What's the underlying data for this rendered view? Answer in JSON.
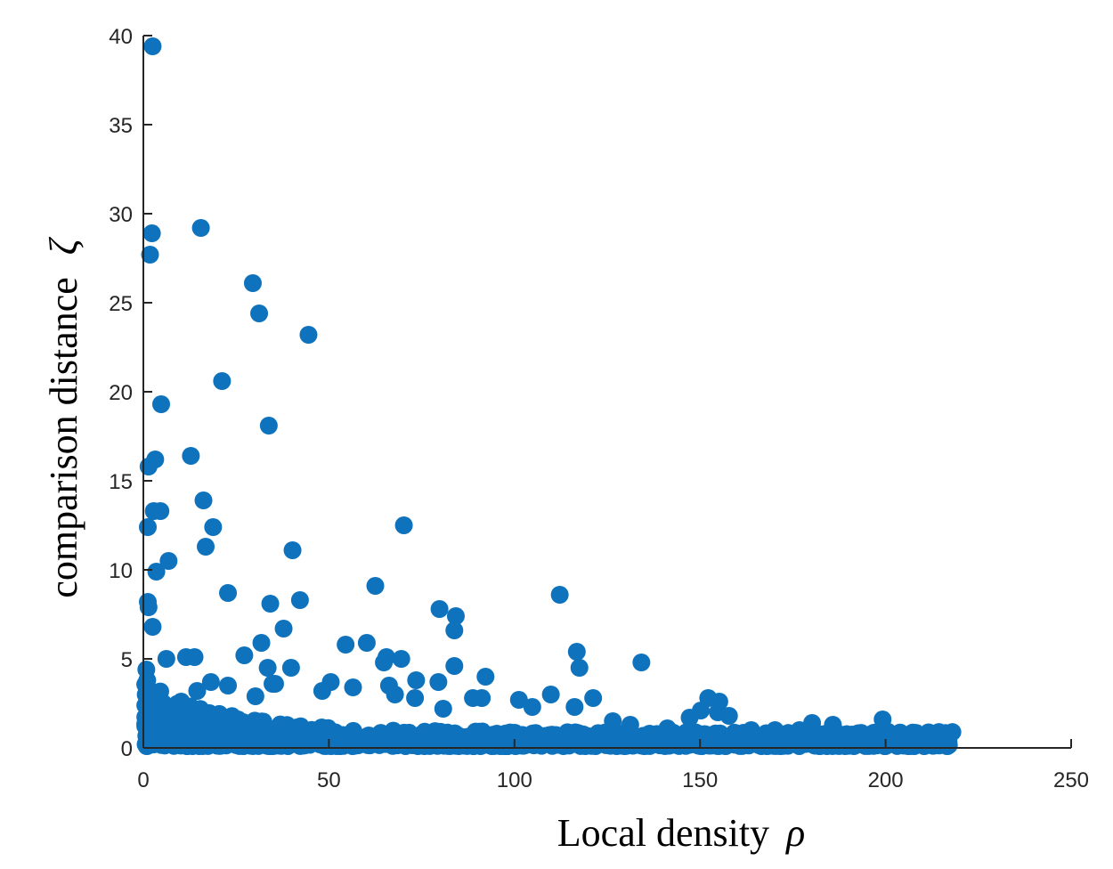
{
  "chart_data": {
    "type": "scatter",
    "title": "",
    "xlabel": "Local density",
    "xlabel_symbol": "ρ",
    "ylabel": "comparison distance",
    "ylabel_symbol": "ζ",
    "xlim": [
      0,
      250
    ],
    "ylim": [
      0,
      40
    ],
    "xticks": [
      0,
      50,
      100,
      150,
      200,
      250
    ],
    "yticks": [
      0,
      5,
      10,
      15,
      20,
      25,
      30,
      35,
      40
    ],
    "grid": false,
    "legend": "none",
    "marker_color": "#0e72bd",
    "highlighted_points": [
      {
        "x": 2.5,
        "y": 39.4
      },
      {
        "x": 2.3,
        "y": 28.9
      },
      {
        "x": 1.8,
        "y": 27.7
      },
      {
        "x": 15.5,
        "y": 29.2
      },
      {
        "x": 29.5,
        "y": 26.1
      },
      {
        "x": 31.2,
        "y": 24.4
      },
      {
        "x": 44.5,
        "y": 23.2
      },
      {
        "x": 21.2,
        "y": 20.6
      },
      {
        "x": 4.8,
        "y": 19.3
      },
      {
        "x": 33.8,
        "y": 18.1
      },
      {
        "x": 12.8,
        "y": 16.4
      },
      {
        "x": 3.2,
        "y": 16.2
      },
      {
        "x": 1.4,
        "y": 15.8
      },
      {
        "x": 16.2,
        "y": 13.9
      },
      {
        "x": 2.8,
        "y": 13.3
      },
      {
        "x": 4.6,
        "y": 13.3
      },
      {
        "x": 1.2,
        "y": 12.4
      },
      {
        "x": 18.8,
        "y": 12.4
      },
      {
        "x": 70.2,
        "y": 12.5
      },
      {
        "x": 16.8,
        "y": 11.3
      },
      {
        "x": 40.2,
        "y": 11.1
      },
      {
        "x": 6.8,
        "y": 10.5
      },
      {
        "x": 3.5,
        "y": 9.9
      },
      {
        "x": 62.5,
        "y": 9.1
      },
      {
        "x": 22.8,
        "y": 8.7
      },
      {
        "x": 112.2,
        "y": 8.6
      },
      {
        "x": 42.2,
        "y": 8.3
      },
      {
        "x": 1.2,
        "y": 8.2
      },
      {
        "x": 34.2,
        "y": 8.1
      },
      {
        "x": 1.4,
        "y": 7.9
      },
      {
        "x": 79.8,
        "y": 7.8
      },
      {
        "x": 84.2,
        "y": 7.4
      },
      {
        "x": 2.5,
        "y": 6.8
      },
      {
        "x": 37.8,
        "y": 6.7
      },
      {
        "x": 83.8,
        "y": 6.6
      },
      {
        "x": 60.2,
        "y": 5.9
      },
      {
        "x": 31.8,
        "y": 5.9
      },
      {
        "x": 54.5,
        "y": 5.8
      },
      {
        "x": 116.8,
        "y": 5.4
      },
      {
        "x": 27.2,
        "y": 5.2
      },
      {
        "x": 11.5,
        "y": 5.1
      },
      {
        "x": 13.8,
        "y": 5.1
      },
      {
        "x": 65.5,
        "y": 5.1
      },
      {
        "x": 69.5,
        "y": 5.0
      },
      {
        "x": 6.2,
        "y": 5.0
      },
      {
        "x": 64.8,
        "y": 4.8
      },
      {
        "x": 134.2,
        "y": 4.8
      },
      {
        "x": 83.8,
        "y": 4.6
      },
      {
        "x": 117.5,
        "y": 4.5
      },
      {
        "x": 33.5,
        "y": 4.5
      },
      {
        "x": 39.8,
        "y": 4.5
      },
      {
        "x": 0.8,
        "y": 4.4
      },
      {
        "x": 92.2,
        "y": 4.0
      },
      {
        "x": 73.5,
        "y": 3.8
      },
      {
        "x": 79.5,
        "y": 3.7
      },
      {
        "x": 18.2,
        "y": 3.7
      },
      {
        "x": 50.5,
        "y": 3.7
      },
      {
        "x": 35.5,
        "y": 3.6
      },
      {
        "x": 22.8,
        "y": 3.5
      },
      {
        "x": 34.8,
        "y": 3.6
      },
      {
        "x": 66.2,
        "y": 3.5
      },
      {
        "x": 56.5,
        "y": 3.4
      },
      {
        "x": 48.2,
        "y": 3.2
      },
      {
        "x": 14.5,
        "y": 3.2
      },
      {
        "x": 109.8,
        "y": 3.0
      },
      {
        "x": 30.2,
        "y": 2.9
      },
      {
        "x": 67.8,
        "y": 3.0
      },
      {
        "x": 88.8,
        "y": 2.8
      },
      {
        "x": 91.2,
        "y": 2.8
      },
      {
        "x": 73.2,
        "y": 2.8
      },
      {
        "x": 101.2,
        "y": 2.7
      },
      {
        "x": 121.2,
        "y": 2.8
      },
      {
        "x": 152.2,
        "y": 2.8
      },
      {
        "x": 155.2,
        "y": 2.6
      },
      {
        "x": 10.2,
        "y": 2.6
      },
      {
        "x": 104.8,
        "y": 2.3
      },
      {
        "x": 116.2,
        "y": 2.3
      },
      {
        "x": 80.8,
        "y": 2.2
      },
      {
        "x": 150.2,
        "y": 2.1
      },
      {
        "x": 154.8,
        "y": 2.0
      },
      {
        "x": 147.2,
        "y": 1.7
      },
      {
        "x": 157.8,
        "y": 1.8
      },
      {
        "x": 199.2,
        "y": 1.6
      },
      {
        "x": 180.2,
        "y": 1.4
      },
      {
        "x": 185.8,
        "y": 1.3
      },
      {
        "x": 131.2,
        "y": 1.3
      },
      {
        "x": 126.5,
        "y": 1.5
      },
      {
        "x": 141.2,
        "y": 1.1
      },
      {
        "x": 170.2,
        "y": 1.0
      },
      {
        "x": 176.8,
        "y": 1.0
      },
      {
        "x": 163.8,
        "y": 1.0
      }
    ],
    "cloud": {
      "description_free": true,
      "x_min": 0.5,
      "x_max": 218,
      "y_min": 0.1,
      "y_max_at_x0": 4.2,
      "decay_rate": 0.05,
      "tail_level": 0.9,
      "count": 1100,
      "seed": 7
    }
  }
}
